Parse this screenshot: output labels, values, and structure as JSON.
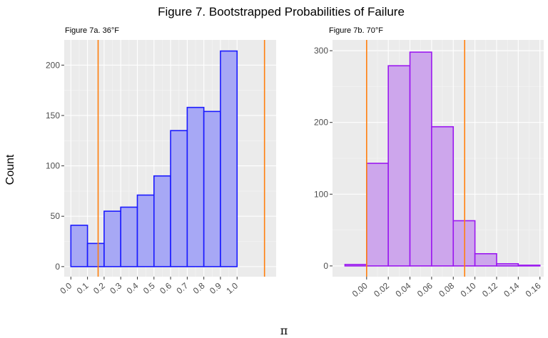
{
  "figure": {
    "title": "Figure 7. Bootstrapped Probabilities of Failure",
    "xlabel": "π",
    "ylabel": "Count"
  },
  "chart_data": [
    {
      "type": "bar",
      "title": "Figure 7a. 36°F",
      "xlim": [
        -0.04,
        1.235
      ],
      "ylim": [
        -10,
        225
      ],
      "x_ticks": [
        "0.0",
        "0.1",
        "0.2",
        "0.3",
        "0.4",
        "0.5",
        "0.6",
        "0.7",
        "0.8",
        "0.9",
        "1.0"
      ],
      "y_ticks": [
        0,
        50,
        100,
        150,
        200
      ],
      "bin_width": 0.1,
      "bins": [
        {
          "x0": 0.0,
          "x1": 0.1,
          "count": 41
        },
        {
          "x0": 0.1,
          "x1": 0.2,
          "count": 23
        },
        {
          "x0": 0.2,
          "x1": 0.3,
          "count": 55
        },
        {
          "x0": 0.3,
          "x1": 0.4,
          "count": 59
        },
        {
          "x0": 0.4,
          "x1": 0.5,
          "count": 71
        },
        {
          "x0": 0.5,
          "x1": 0.6,
          "count": 90
        },
        {
          "x0": 0.6,
          "x1": 0.7,
          "count": 135
        },
        {
          "x0": 0.7,
          "x1": 0.8,
          "count": 158
        },
        {
          "x0": 0.8,
          "x1": 0.9,
          "count": 154
        },
        {
          "x0": 0.9,
          "x1": 1.0,
          "count": 214
        },
        {
          "x0": 1.0,
          "x1": 1.1,
          "count": 0
        },
        {
          "x0": 1.1,
          "x1": 1.2,
          "count": 0
        }
      ],
      "vlines": [
        0.164,
        1.165
      ],
      "fill_color": "#a7a8f5",
      "edge_color": "#1a1aff",
      "vline_color": "#ff7f0e",
      "grid": true,
      "panel_background": "#ebebeb"
    },
    {
      "type": "bar",
      "title": "Figure 7b. 70°F",
      "xlim": [
        -0.0315,
        0.1635
      ],
      "ylim": [
        -15,
        315
      ],
      "x_ticks": [
        "0.00",
        "0.02",
        "0.04",
        "0.06",
        "0.08",
        "0.10",
        "0.12",
        "0.14",
        "0.16"
      ],
      "y_ticks": [
        0,
        100,
        200,
        300
      ],
      "bin_width": 0.02,
      "bins": [
        {
          "x0": -0.02,
          "x1": 0.0,
          "count": 2
        },
        {
          "x0": 0.0,
          "x1": 0.02,
          "count": 143
        },
        {
          "x0": 0.02,
          "x1": 0.04,
          "count": 279
        },
        {
          "x0": 0.04,
          "x1": 0.06,
          "count": 298
        },
        {
          "x0": 0.06,
          "x1": 0.08,
          "count": 194
        },
        {
          "x0": 0.08,
          "x1": 0.1,
          "count": 63
        },
        {
          "x0": 0.1,
          "x1": 0.12,
          "count": 17
        },
        {
          "x0": 0.12,
          "x1": 0.14,
          "count": 3
        },
        {
          "x0": 0.14,
          "x1": 0.16,
          "count": 1
        }
      ],
      "vlines": [
        0.0,
        0.0905
      ],
      "fill_color": "#cda6ec",
      "edge_color": "#9b18f0",
      "vline_color": "#ff7f0e",
      "grid": true,
      "panel_background": "#ebebeb"
    }
  ]
}
